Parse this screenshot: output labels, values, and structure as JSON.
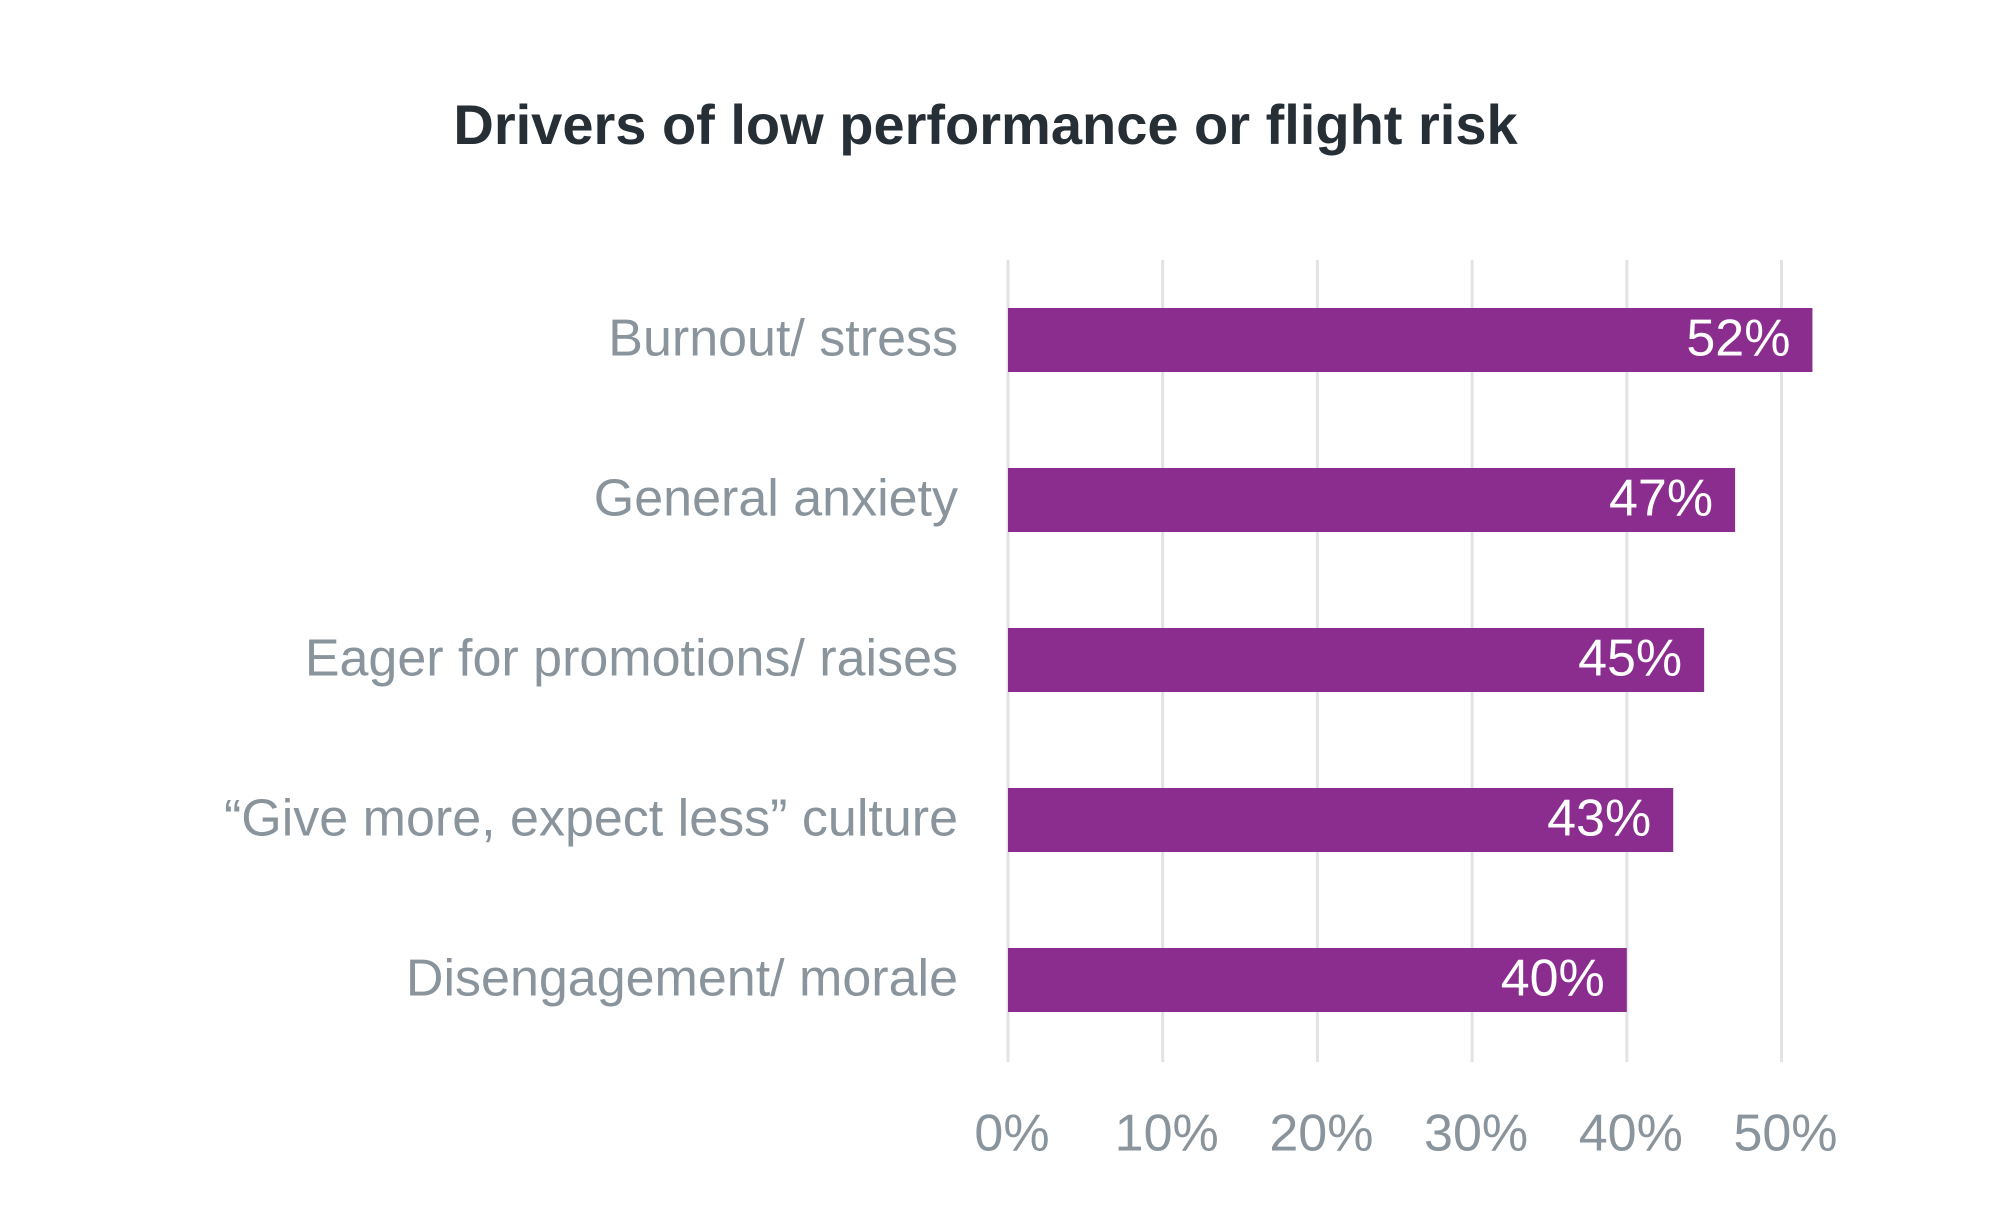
{
  "chart_data": {
    "type": "bar",
    "orientation": "horizontal",
    "title": "Drivers of low performance or flight risk",
    "categories": [
      "Burnout/ stress",
      "General anxiety",
      "Eager for promotions/ raises",
      "“Give more, expect less” culture",
      "Disengagement/ morale"
    ],
    "values": [
      52,
      47,
      45,
      43,
      40
    ],
    "value_labels": [
      "52%",
      "47%",
      "45%",
      "43%",
      "40%"
    ],
    "xlim": [
      0,
      50
    ],
    "x_ticks": [
      0,
      10,
      20,
      30,
      40,
      50
    ],
    "x_tick_labels": [
      "0%",
      "10%",
      "20%",
      "30%",
      "40%",
      "50%"
    ],
    "xlabel": "",
    "ylabel": "",
    "grid": true,
    "legend": "none",
    "colors": {
      "bar": "#8a2d8f",
      "bar_label": "#ffffff",
      "category_label": "#8a949c",
      "tick_label": "#8a949c",
      "grid": "#e3e3e3",
      "title": "#262e36"
    }
  }
}
